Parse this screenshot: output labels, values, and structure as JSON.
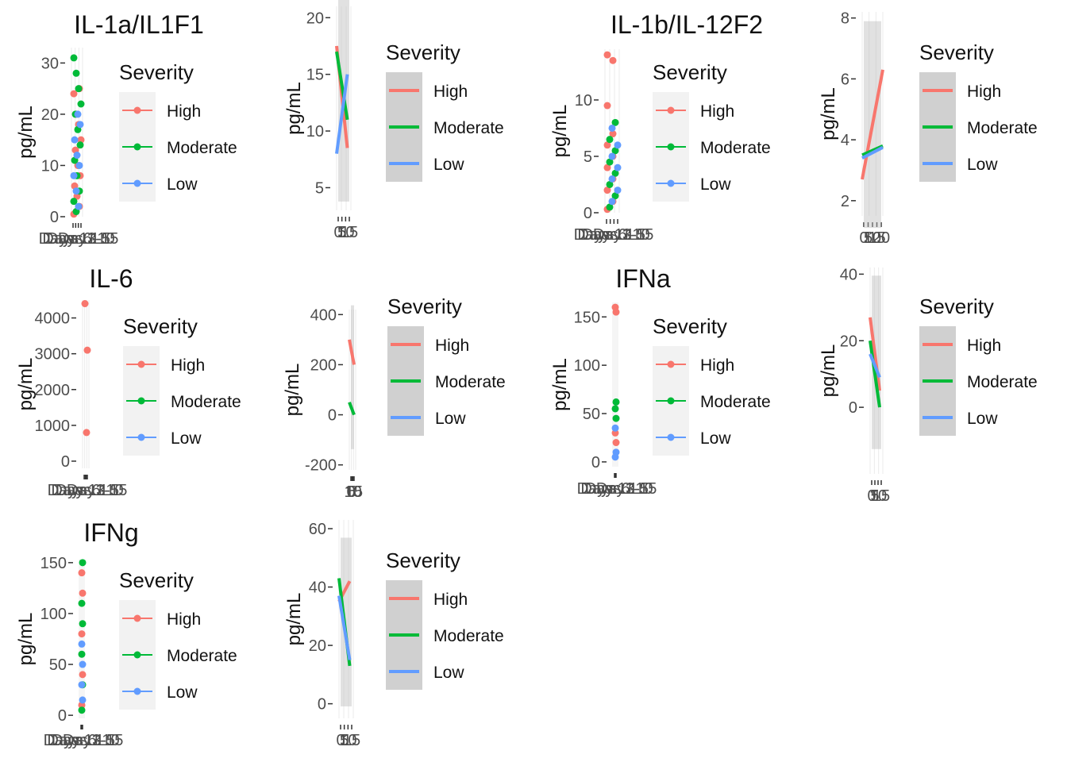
{
  "legend_title": "Severity",
  "groups": [
    {
      "name": "High",
      "color": "#F8766D"
    },
    {
      "name": "Moderate",
      "color": "#00BA38"
    },
    {
      "name": "Low",
      "color": "#619CFF"
    }
  ],
  "chart_data": [
    {
      "type": "scatter",
      "title": "IL-1a/IL1F1",
      "ylabel": "pg/mL",
      "ylim": [
        0,
        33
      ],
      "y_ticks": [
        0,
        10,
        20,
        30
      ],
      "x_tick_labels": [
        "Day 1",
        "Days 3-5",
        "Days 6-10",
        "Days 11-15"
      ],
      "legend": "top-right",
      "series": [
        {
          "name": "High",
          "values": [
            0.5,
            2,
            4,
            6,
            8,
            10,
            13,
            15,
            18,
            20,
            24,
            25
          ]
        },
        {
          "name": "Moderate",
          "values": [
            1,
            3,
            5,
            8,
            11,
            14,
            17,
            20,
            22,
            25,
            28,
            31
          ]
        },
        {
          "name": "Low",
          "values": [
            2,
            5,
            8,
            10,
            12,
            15,
            18,
            20
          ]
        }
      ]
    },
    {
      "type": "line",
      "ylabel": "pg/mL",
      "ylim": [
        3,
        21
      ],
      "y_ticks": [
        5,
        10,
        15,
        20
      ],
      "x_tick_labels": [
        "0",
        "5",
        "10",
        "15"
      ],
      "legend": "top-right",
      "series": [
        {
          "name": "High",
          "x": [
            0,
            15
          ],
          "y": [
            17.5,
            8.5
          ]
        },
        {
          "name": "Moderate",
          "x": [
            0,
            15
          ],
          "y": [
            17,
            11
          ]
        },
        {
          "name": "Low",
          "x": [
            0,
            15
          ],
          "y": [
            8,
            15
          ]
        }
      ]
    },
    {
      "type": "scatter",
      "title": "IL-1b/IL-12F2",
      "ylabel": "pg/mL",
      "ylim": [
        0,
        14.5
      ],
      "y_ticks": [
        0,
        5,
        10
      ],
      "x_tick_labels": [
        "Day 1",
        "Days 3-5",
        "Days 6-10",
        "Days 11-15"
      ],
      "legend": "top-right",
      "series": [
        {
          "name": "High",
          "values": [
            0.3,
            1,
            2,
            3,
            4,
            5,
            6,
            7,
            9.5,
            13.5,
            14
          ]
        },
        {
          "name": "Moderate",
          "values": [
            0.5,
            1.5,
            2.5,
            3.5,
            4.5,
            5.5,
            6.5,
            8
          ]
        },
        {
          "name": "Low",
          "values": [
            1,
            2,
            3,
            4,
            5,
            6,
            7.5
          ]
        }
      ]
    },
    {
      "type": "line",
      "ylabel": "pg/mL",
      "ylim": [
        1.5,
        8.2
      ],
      "y_ticks": [
        2,
        4,
        6,
        8
      ],
      "x_tick_labels": [
        "0",
        "5",
        "10",
        "15",
        "20"
      ],
      "legend": "top-right",
      "series": [
        {
          "name": "High",
          "x": [
            0,
            20
          ],
          "y": [
            2.7,
            6.3
          ]
        },
        {
          "name": "Moderate",
          "x": [
            0,
            20
          ],
          "y": [
            3.5,
            3.8
          ]
        },
        {
          "name": "Low",
          "x": [
            0,
            20
          ],
          "y": [
            3.4,
            3.75
          ]
        }
      ]
    },
    {
      "type": "scatter",
      "title": "IL-6",
      "ylabel": "pg/mL",
      "ylim": [
        -200,
        4500
      ],
      "y_ticks": [
        0,
        1000,
        2000,
        3000,
        4000
      ],
      "x_tick_labels": [
        "Day 1",
        "Days 3-5",
        "Days 6-10",
        "Days 11-15"
      ],
      "legend": "top-right",
      "series": [
        {
          "name": "High",
          "values": [
            4400,
            3100,
            800
          ]
        }
      ]
    },
    {
      "type": "line",
      "ylabel": "pg/mL",
      "ylim": [
        -220,
        420
      ],
      "y_ticks": [
        -200,
        0,
        200,
        400
      ],
      "x_tick_labels": [
        "0",
        "5",
        "10",
        "15"
      ],
      "legend": "top-right",
      "series": [
        {
          "name": "High",
          "x": [
            0,
            15
          ],
          "y": [
            300,
            200
          ]
        },
        {
          "name": "Moderate",
          "x": [
            0,
            15
          ],
          "y": [
            50,
            0
          ]
        }
      ]
    },
    {
      "type": "scatter",
      "title": "IFNa",
      "ylabel": "pg/mL",
      "ylim": [
        -5,
        165
      ],
      "y_ticks": [
        0,
        50,
        100,
        150
      ],
      "x_tick_labels": [
        "Day 1",
        "Days 3-5",
        "Days 6-10",
        "Days 11-15"
      ],
      "legend": "top-right",
      "series": [
        {
          "name": "High",
          "values": [
            160,
            155,
            30,
            20
          ]
        },
        {
          "name": "Moderate",
          "values": [
            62,
            55,
            45
          ]
        },
        {
          "name": "Low",
          "values": [
            35,
            10,
            5
          ]
        }
      ]
    },
    {
      "type": "line",
      "ylabel": "pg/mL",
      "ylim": [
        -20,
        42
      ],
      "y_ticks": [
        0,
        20,
        40
      ],
      "x_tick_labels": [
        "0",
        "5",
        "10",
        "15"
      ],
      "legend": "top-right",
      "series": [
        {
          "name": "High",
          "x": [
            0,
            15
          ],
          "y": [
            27,
            5
          ]
        },
        {
          "name": "Moderate",
          "x": [
            0,
            15
          ],
          "y": [
            20,
            0
          ]
        },
        {
          "name": "Low",
          "x": [
            0,
            15
          ],
          "y": [
            16,
            9
          ]
        }
      ]
    },
    {
      "type": "scatter",
      "title": "IFNg",
      "ylabel": "pg/mL",
      "ylim": [
        -3,
        153
      ],
      "y_ticks": [
        0,
        50,
        100,
        150
      ],
      "x_tick_labels": [
        "Day 1",
        "Days 3-5",
        "Days 6-10",
        "Days 11-15"
      ],
      "legend": "top-right",
      "series": [
        {
          "name": "High",
          "values": [
            140,
            120,
            80,
            40,
            10
          ]
        },
        {
          "name": "Moderate",
          "values": [
            150,
            110,
            90,
            60,
            30,
            5
          ]
        },
        {
          "name": "Low",
          "values": [
            70,
            50,
            30,
            15
          ]
        }
      ]
    },
    {
      "type": "line",
      "ylabel": "pg/mL",
      "ylim": [
        -5,
        63
      ],
      "y_ticks": [
        0,
        20,
        40,
        60
      ],
      "x_tick_labels": [
        "0",
        "5",
        "10",
        "15"
      ],
      "legend": "top-right",
      "series": [
        {
          "name": "High",
          "x": [
            0,
            15
          ],
          "y": [
            35,
            42
          ]
        },
        {
          "name": "Moderate",
          "x": [
            0,
            15
          ],
          "y": [
            43,
            13
          ]
        },
        {
          "name": "Low",
          "x": [
            0,
            15
          ],
          "y": [
            37,
            15
          ]
        }
      ]
    }
  ]
}
